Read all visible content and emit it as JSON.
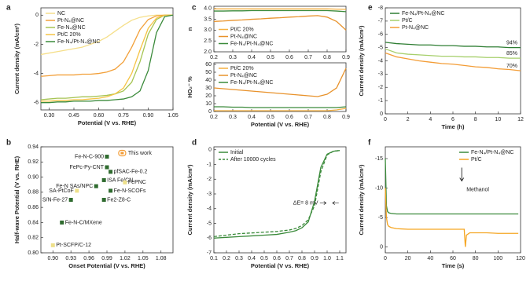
{
  "chart_data": [
    {
      "type": "line",
      "panel": "a",
      "xlabel": "Potential (V vs. RHE)",
      "ylabel": "Current density (mA/cm²)",
      "x": [
        0.25,
        0.3,
        0.35,
        0.4,
        0.45,
        0.5,
        0.55,
        0.6,
        0.65,
        0.7,
        0.75,
        0.8,
        0.85,
        0.9,
        0.95,
        1.0,
        1.05
      ],
      "xlim": [
        0.25,
        1.05
      ],
      "ylim": [
        -6.5,
        0.5
      ],
      "xticks": [
        {
          "value": 0.3,
          "label": "0.30"
        },
        0.45,
        {
          "value": 0.6,
          "label": "0.60"
        },
        0.75,
        {
          "value": 0.9,
          "label": "0.90"
        },
        1.05
      ],
      "yticks": [
        0,
        -2,
        -4,
        -6
      ],
      "legend": "upper left",
      "series": [
        {
          "name": "NC",
          "color": "#f5df8a",
          "values": [
            -2.7,
            -2.6,
            -2.5,
            -2.4,
            -2.3,
            -2.2,
            -2.0,
            -1.8,
            -1.5,
            -1.1,
            -0.7,
            -0.35,
            -0.15,
            -0.05,
            0,
            0,
            0
          ]
        },
        {
          "name": "Pt-N₄@NC",
          "color": "#f2a03a",
          "values": [
            -4.2,
            -4.15,
            -4.1,
            -4.1,
            -4.1,
            -4.05,
            -4.05,
            -4.0,
            -3.9,
            -3.7,
            -3.2,
            -2.2,
            -1.0,
            -0.3,
            -0.05,
            0,
            0
          ]
        },
        {
          "name": "Fe-N₄@NC",
          "color": "#a6c453",
          "values": [
            -5.8,
            -5.75,
            -5.7,
            -5.7,
            -5.65,
            -5.6,
            -5.6,
            -5.55,
            -5.5,
            -5.4,
            -5.2,
            -4.6,
            -3.2,
            -1.3,
            -0.3,
            0,
            0
          ]
        },
        {
          "name": "Pt/C 20%",
          "color": "#f5c445",
          "values": [
            -5.9,
            -5.9,
            -5.85,
            -5.85,
            -5.8,
            -5.8,
            -5.75,
            -5.7,
            -5.6,
            -5.4,
            -5.0,
            -4.0,
            -2.4,
            -0.9,
            -0.2,
            0,
            0
          ]
        },
        {
          "name": "Fe-N₄/Pt-N₄@NC",
          "color": "#3a8a3a",
          "values": [
            -6.0,
            -6.0,
            -5.95,
            -5.95,
            -5.9,
            -5.9,
            -5.9,
            -5.85,
            -5.85,
            -5.8,
            -5.75,
            -5.6,
            -5.2,
            -3.8,
            -1.2,
            -0.1,
            0
          ]
        }
      ]
    },
    {
      "type": "scatter",
      "panel": "b",
      "xlabel": "Onset Potential (V vs. RHE)",
      "ylabel": "Half-wave Potential (V vs. RHE)",
      "xlim": [
        0.88,
        1.1
      ],
      "ylim": [
        0.8,
        0.94
      ],
      "xticks": [
        {
          "value": 0.9,
          "label": "0.90"
        },
        0.93,
        0.96,
        0.99,
        1.02,
        1.05,
        1.08
      ],
      "yticks": [
        {
          "value": 0.8,
          "label": "0.80"
        },
        0.82,
        0.84,
        0.86,
        0.88,
        {
          "value": 0.9,
          "label": "0.90"
        },
        0.92,
        0.94
      ],
      "annotations": [
        "This work"
      ],
      "note_color": "#f39c35",
      "series": [
        {
          "name": "Fe-N-C-900",
          "color": "#2f6b2f",
          "side": "left",
          "x": [
            0.99
          ],
          "values": [
            0.927
          ]
        },
        {
          "name": "FePc-Py-CNT",
          "color": "#2f6b2f",
          "side": "left",
          "x": [
            0.99
          ],
          "values": [
            0.913
          ]
        },
        {
          "name": "pfSAC-Fe-0.2",
          "color": "#2f6b2f",
          "side": "right",
          "x": [
            0.996
          ],
          "values": [
            0.907
          ]
        },
        {
          "name": "ISA Fe/CN",
          "color": "#2f6b2f",
          "side": "right",
          "x": [
            0.985
          ],
          "values": [
            0.896
          ]
        },
        {
          "name": "FePNC",
          "color": "#eee08a",
          "side": "right",
          "x": [
            1.02
          ],
          "values": [
            0.893
          ]
        },
        {
          "name": "Fe-N SAs/NPC",
          "color": "#2f6b2f",
          "side": "left",
          "x": [
            0.972
          ],
          "values": [
            0.888
          ]
        },
        {
          "name": "Fe-N-SCOFs",
          "color": "#2f6b2f",
          "side": "right",
          "x": [
            0.996
          ],
          "values": [
            0.882
          ]
        },
        {
          "name": "SA-PtCoF",
          "color": "#eee08a",
          "side": "left",
          "x": [
            0.94
          ],
          "values": [
            0.882
          ]
        },
        {
          "name": "Fe2-Z8-C",
          "color": "#2f6b2f",
          "side": "right",
          "x": [
            0.985
          ],
          "values": [
            0.87
          ]
        },
        {
          "name": "S/N-Fe-27",
          "color": "#2f6b2f",
          "side": "left",
          "x": [
            0.93
          ],
          "values": [
            0.87
          ]
        },
        {
          "name": "Fe-N-C/MXene",
          "color": "#2f6b2f",
          "side": "right",
          "x": [
            0.915
          ],
          "values": [
            0.84
          ]
        },
        {
          "name": "Pt-SCFP/C-12",
          "color": "#eee08a",
          "side": "right",
          "x": [
            0.9
          ],
          "values": [
            0.81
          ]
        }
      ]
    },
    {
      "type": "line",
      "panel": "c",
      "ylabel": "n",
      "x": [
        0.2,
        0.25,
        0.3,
        0.35,
        0.4,
        0.45,
        0.5,
        0.55,
        0.6,
        0.65,
        0.7,
        0.75,
        0.8,
        0.85,
        0.9
      ],
      "xlim": [
        0.2,
        0.9
      ],
      "ylim": [
        2.0,
        4.1
      ],
      "xticks": [
        0.2,
        0.3,
        0.4,
        0.5,
        0.6,
        0.7,
        0.8,
        0.9
      ],
      "yticks": [
        {
          "value": 2,
          "label": "2.0"
        },
        2.5,
        {
          "value": 3,
          "label": "3.0"
        },
        3.5,
        {
          "value": 4,
          "label": "4.0"
        }
      ],
      "legend": "lower left",
      "series": [
        {
          "name": "Pt/C 20%",
          "color": "#f5b041",
          "values": [
            3.98,
            3.98,
            3.98,
            3.98,
            3.98,
            3.98,
            3.98,
            3.98,
            3.98,
            3.98,
            3.98,
            3.98,
            3.98,
            3.97,
            3.96
          ]
        },
        {
          "name": "Pt-N₄@NC",
          "color": "#e8922b",
          "values": [
            3.4,
            3.42,
            3.45,
            3.47,
            3.5,
            3.52,
            3.55,
            3.57,
            3.6,
            3.62,
            3.65,
            3.67,
            3.6,
            3.4,
            3.0
          ]
        },
        {
          "name": "Fe-N₄/Pt-N₄@NC",
          "color": "#3a8a3a",
          "values": [
            3.88,
            3.88,
            3.89,
            3.89,
            3.9,
            3.9,
            3.9,
            3.9,
            3.9,
            3.9,
            3.9,
            3.9,
            3.9,
            3.88,
            3.85
          ]
        }
      ]
    },
    {
      "type": "line",
      "xlabel": "Potential (V vs. RHE)",
      "ylabel": "HO₂⁻ %",
      "x": [
        0.2,
        0.25,
        0.3,
        0.35,
        0.4,
        0.45,
        0.5,
        0.55,
        0.6,
        0.65,
        0.7,
        0.75,
        0.8,
        0.85,
        0.9
      ],
      "xlim": [
        0.2,
        0.9
      ],
      "ylim": [
        0,
        62
      ],
      "xticks": [
        0.2,
        0.3,
        0.4,
        0.5,
        0.6,
        0.7,
        0.8,
        0.9
      ],
      "yticks": [
        0,
        10,
        20,
        30,
        40,
        50,
        60
      ],
      "legend": "upper left",
      "series": [
        {
          "name": "Pt/C 20%",
          "color": "#f5b041",
          "values": [
            1,
            1,
            1,
            1,
            1,
            1,
            1,
            1,
            1,
            1,
            1,
            1,
            1,
            2,
            4
          ]
        },
        {
          "name": "Pt-N₄@NC",
          "color": "#e8922b",
          "values": [
            30,
            29,
            28,
            27,
            26,
            25,
            24,
            23,
            22,
            21,
            20,
            19,
            22,
            30,
            55
          ]
        },
        {
          "name": "Fe-N₄/Pt-N₄@NC",
          "color": "#3a8a3a",
          "values": [
            6,
            6,
            5.5,
            5.5,
            5,
            5,
            5,
            5,
            5,
            5,
            5,
            5,
            5,
            5,
            6
          ]
        }
      ]
    },
    {
      "type": "line",
      "panel": "d",
      "xlabel": "Potential (V vs. RHE)",
      "ylabel": "Current density (mA/cm²)",
      "x": [
        0.1,
        0.2,
        0.3,
        0.4,
        0.5,
        0.6,
        0.7,
        0.75,
        0.8,
        0.85,
        0.9,
        0.95,
        1.0,
        1.05,
        1.1
      ],
      "xlim": [
        0.1,
        1.15
      ],
      "ylim": [
        -7,
        0.2
      ],
      "xticks": [
        0.1,
        0.2,
        0.3,
        0.4,
        0.5,
        0.6,
        0.7,
        0.8,
        0.9,
        {
          "value": 1,
          "label": "1.0"
        },
        1.1
      ],
      "yticks": [
        0,
        -1,
        -2,
        -3,
        -4,
        -5,
        -6,
        -7
      ],
      "legend": "upper left",
      "annotations": [
        "ΔE= 8 mV"
      ],
      "series": [
        {
          "name": "Initial",
          "color": "#3a8a3a",
          "values": [
            -6.0,
            -5.95,
            -5.9,
            -5.85,
            -5.8,
            -5.75,
            -5.6,
            -5.5,
            -5.3,
            -4.9,
            -3.5,
            -1.2,
            -0.3,
            -0.1,
            -0.05
          ]
        },
        {
          "name": "After 10000 cycles",
          "color": "#3a8a3a",
          "dash": true,
          "values": [
            -5.9,
            -5.8,
            -5.7,
            -5.65,
            -5.6,
            -5.55,
            -5.45,
            -5.35,
            -5.15,
            -4.75,
            -3.8,
            -1.5,
            -0.35,
            -0.1,
            -0.05
          ]
        }
      ]
    },
    {
      "type": "line",
      "panel": "e",
      "xlabel": "Time (h)",
      "ylabel": "Current density (mA/cm²)",
      "x": [
        0,
        1,
        2,
        3,
        4,
        5,
        6,
        7,
        8,
        9,
        10,
        11,
        12
      ],
      "xlim": [
        0,
        12
      ],
      "ylim": [
        0,
        -8
      ],
      "xticks": [
        0,
        2,
        4,
        6,
        8,
        10,
        12
      ],
      "yticks": [
        -8,
        -7,
        -6,
        -5,
        -4,
        -3,
        -2,
        -1,
        0
      ],
      "legend": "upper left",
      "annotations": [
        "94%",
        "85%",
        "70%"
      ],
      "series": [
        {
          "name": "Fe-N₄/Pt-N₄@NC",
          "color": "#2e7d32",
          "values": [
            -5.4,
            -5.3,
            -5.25,
            -5.2,
            -5.2,
            -5.15,
            -5.15,
            -5.1,
            -5.1,
            -5.05,
            -5.05,
            -5.0,
            -5.0
          ]
        },
        {
          "name": "Pt/C",
          "color": "#a6cf6b",
          "values": [
            -4.9,
            -4.6,
            -4.5,
            -4.45,
            -4.4,
            -4.35,
            -4.35,
            -4.3,
            -4.3,
            -4.25,
            -4.25,
            -4.2,
            -4.2
          ]
        },
        {
          "name": "Pt-N₄@NC",
          "color": "#f39c35",
          "values": [
            -4.6,
            -4.3,
            -4.15,
            -4.0,
            -3.9,
            -3.8,
            -3.75,
            -3.65,
            -3.55,
            -3.5,
            -3.4,
            -3.35,
            -3.25
          ]
        }
      ]
    },
    {
      "type": "line",
      "panel": "f",
      "xlabel": "Time (s)",
      "ylabel": "Current density (mA/cm²)",
      "x": [
        0,
        1,
        2,
        3,
        5,
        10,
        20,
        30,
        40,
        50,
        60,
        70,
        71,
        72,
        75,
        80,
        90,
        100,
        110,
        118
      ],
      "xlim": [
        0,
        120
      ],
      "ylim": [
        1,
        -17
      ],
      "xticks": [
        0,
        20,
        40,
        60,
        80,
        100,
        120
      ],
      "yticks": [
        -15,
        -10,
        -5,
        0
      ],
      "legend": "upper right",
      "annotations": [
        "Methanol"
      ],
      "series": [
        {
          "name": "Fe-N₄/Pt-N₄@NC",
          "color": "#3a8a3a",
          "values": [
            -15,
            -7,
            -6,
            -5.8,
            -5.7,
            -5.6,
            -5.6,
            -5.6,
            -5.6,
            -5.6,
            -5.6,
            -5.6,
            -5.6,
            -5.6,
            -5.6,
            -5.6,
            -5.6,
            -5.6,
            -5.6,
            -5.6
          ]
        },
        {
          "name": "Pt/C",
          "color": "#f5a623",
          "values": [
            -10,
            -5,
            -3.8,
            -3.5,
            -3.3,
            -3.1,
            -3.0,
            -3.0,
            -3.0,
            -3.0,
            -3.0,
            -3.0,
            0,
            -2,
            -2.4,
            -2.4,
            -2.4,
            -2.3,
            -2.3,
            -2.3
          ]
        }
      ]
    }
  ]
}
